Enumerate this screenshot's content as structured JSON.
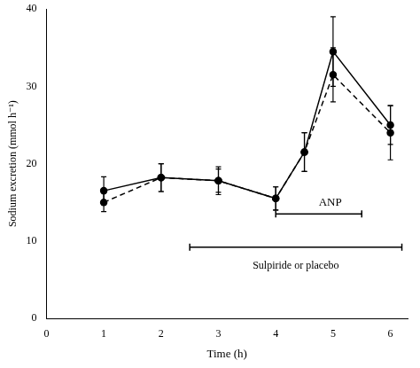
{
  "chart_data": {
    "type": "line",
    "xlabel": "Time (h)",
    "ylabel": "Sodium excretion (mmol h⁻¹)",
    "x": [
      1,
      2,
      3,
      4,
      4.5,
      5,
      6
    ],
    "series": [
      {
        "color": "#000000",
        "line_style": "solid",
        "marker": "circle",
        "values": [
          16.5,
          18.2,
          17.8,
          15.5,
          21.5,
          34.5,
          25.0
        ],
        "yerr": [
          1.8,
          1.8,
          1.8,
          1.5,
          2.5,
          4.5,
          2.5
        ]
      },
      {
        "color": "#000000",
        "line_style": "dashed",
        "marker": "circle",
        "values": [
          15.0,
          18.2,
          17.8,
          15.5,
          21.5,
          31.5,
          24.0
        ],
        "yerr": [
          1.2,
          1.8,
          1.5,
          1.5,
          2.5,
          3.5,
          3.5
        ]
      }
    ],
    "xlim": [
      0,
      6.3
    ],
    "ylim": [
      0,
      40
    ],
    "xticks": [
      0,
      1,
      2,
      3,
      4,
      5,
      6
    ],
    "yticks": [
      0,
      10,
      20,
      30,
      40
    ],
    "grid": false,
    "annotations": [
      {
        "text": "ANP",
        "x1": 4.0,
        "x2": 5.5,
        "y": 13.5,
        "label_x": 4.75,
        "label_y": 14.2
      },
      {
        "text": "Sulpiride or placebo",
        "x1": 2.5,
        "x2": 6.2,
        "y": 9.2,
        "label_x": 4.35,
        "label_y": 7.5
      }
    ]
  }
}
